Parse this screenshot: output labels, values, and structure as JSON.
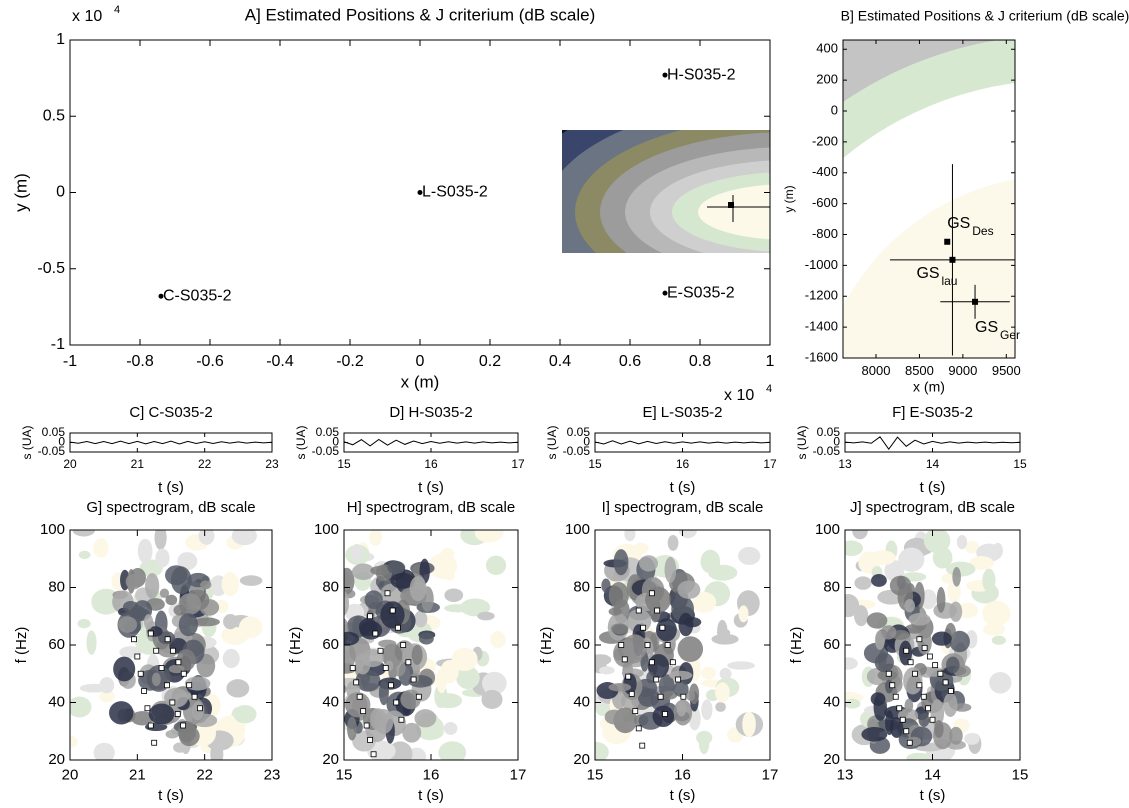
{
  "chart_data": [
    {
      "type": "scatter",
      "title": "A] Estimated Positions & J criterium (dB scale)",
      "x_label": "x (m)",
      "y_label": "y (m)",
      "x_scale_label": "x 10",
      "x_scale_exp": "4",
      "y_scale_label": "x 10",
      "y_scale_exp": "4",
      "xlim": [
        -1,
        1
      ],
      "ylim": [
        -1,
        1
      ],
      "xticks": [
        -1,
        -0.8,
        -0.6,
        -0.4,
        -0.2,
        0,
        0.2,
        0.4,
        0.6,
        0.8,
        1
      ],
      "yticks": [
        -1,
        -0.5,
        0,
        0.5,
        1
      ],
      "labels": [
        "C-S035-2",
        "H-S035-2",
        "L-S035-2",
        "E-S035-2"
      ],
      "x": [
        -0.74,
        0.7,
        0,
        0.7
      ],
      "y": [
        -0.68,
        0.77,
        0,
        -0.66
      ],
      "color": "#000000"
    },
    {
      "type": "errorbar",
      "title": "B] Estimated Positions & J criterium (dB scale)",
      "x_label": "x (m)",
      "y_label": "y (m)",
      "xlim": [
        7620,
        9600
      ],
      "ylim": [
        -1600,
        460
      ],
      "xticks": [
        8000,
        8500,
        9000,
        9500
      ],
      "yticks": [
        -1600,
        -1400,
        -1200,
        -1000,
        -800,
        -600,
        -400,
        -200,
        0,
        200,
        400
      ],
      "label_base": "GS",
      "label_subs": [
        "Des",
        "lau",
        "Ger"
      ],
      "x": [
        8820,
        8880,
        9140
      ],
      "y": [
        -847,
        -964,
        -1236
      ],
      "x_err": [
        null,
        720,
        400
      ],
      "y_err": [
        null,
        620,
        110
      ],
      "color": "#000000"
    },
    {
      "type": "line",
      "title": "C] C-S035-2",
      "x_label": "t (s)",
      "y_label": "s (UA)",
      "xlim": [
        20,
        23
      ],
      "ylim": [
        -0.05,
        0.05
      ],
      "xticks": [
        20,
        21,
        22,
        23
      ],
      "yticks": [
        -0.05,
        0,
        0.05
      ],
      "x": [
        20,
        20.125,
        20.25,
        20.375,
        20.5,
        20.625,
        20.75,
        20.875,
        21,
        21.125,
        21.25,
        21.375,
        21.5,
        21.625,
        21.75,
        21.875,
        22,
        22.125,
        22.25,
        22.375,
        22.5,
        22.625,
        22.75,
        22.875,
        23
      ],
      "values": [
        0.002,
        -0.004,
        0.005,
        -0.006,
        0.005,
        -0.006,
        0.007,
        -0.006,
        0.006,
        -0.007,
        0.005,
        -0.006,
        0.007,
        -0.008,
        0.006,
        -0.005,
        0.004,
        -0.005,
        0.004,
        -0.003,
        0.003,
        -0.003,
        0.002,
        -0.002,
        0.001
      ],
      "color": "#000000"
    },
    {
      "type": "line",
      "title": "D] H-S035-2",
      "x_label": "t (s)",
      "y_label": "s (UA)",
      "xlim": [
        15,
        17
      ],
      "ylim": [
        -0.05,
        0.05
      ],
      "xticks": [
        15,
        16,
        17
      ],
      "yticks": [
        -0.05,
        0,
        0.05
      ],
      "x": [
        15,
        15.1,
        15.2,
        15.3,
        15.4,
        15.5,
        15.6,
        15.7,
        15.8,
        15.9,
        16,
        16.1,
        16.2,
        16.3,
        16.4,
        16.5,
        16.6,
        16.7,
        16.8,
        16.9,
        17
      ],
      "values": [
        0.004,
        -0.012,
        0.015,
        -0.018,
        0.016,
        -0.014,
        0.012,
        -0.01,
        0.008,
        -0.006,
        0.005,
        -0.004,
        0.004,
        -0.003,
        0.003,
        -0.003,
        0.003,
        -0.002,
        0.002,
        -0.002,
        0.001
      ],
      "color": "#000000"
    },
    {
      "type": "line",
      "title": "E] L-S035-2",
      "x_label": "t (s)",
      "y_label": "s (UA)",
      "xlim": [
        15,
        17
      ],
      "ylim": [
        -0.05,
        0.05
      ],
      "xticks": [
        15,
        16,
        17
      ],
      "yticks": [
        -0.05,
        0,
        0.05
      ],
      "x": [
        15,
        15.1,
        15.2,
        15.3,
        15.4,
        15.5,
        15.6,
        15.7,
        15.8,
        15.9,
        16,
        16.1,
        16.2,
        16.3,
        16.4,
        16.5,
        16.6,
        16.7,
        16.8,
        16.9,
        17
      ],
      "values": [
        0.003,
        -0.008,
        0.009,
        -0.008,
        0.007,
        -0.007,
        0.006,
        -0.005,
        0.004,
        -0.004,
        0.003,
        -0.003,
        0.003,
        -0.003,
        0.002,
        -0.003,
        0.002,
        -0.002,
        0.002,
        -0.002,
        0.001
      ],
      "color": "#000000"
    },
    {
      "type": "line",
      "title": "F] E-S035-2",
      "x_label": "t (s)",
      "y_label": "s (UA)",
      "xlim": [
        13,
        15
      ],
      "ylim": [
        -0.05,
        0.05
      ],
      "xticks": [
        13,
        14,
        15
      ],
      "yticks": [
        -0.05,
        0,
        0.05
      ],
      "x": [
        13,
        13.1,
        13.2,
        13.3,
        13.4,
        13.5,
        13.6,
        13.7,
        13.8,
        13.9,
        14,
        14.1,
        14.2,
        14.3,
        14.4,
        14.5,
        14.6,
        14.7,
        14.8,
        14.9,
        15
      ],
      "values": [
        0.002,
        -0.002,
        0.003,
        -0.004,
        0.03,
        -0.035,
        0.028,
        -0.02,
        0.012,
        -0.008,
        0.006,
        -0.004,
        0.003,
        -0.003,
        0.002,
        -0.002,
        0.002,
        -0.002,
        0.001,
        -0.001,
        0.001
      ],
      "color": "#000000"
    },
    {
      "type": "spectrogram",
      "title": "G] spectrogram, dB scale",
      "x_label": "t (s)",
      "y_label": "f (Hz)",
      "xlim": [
        20,
        23
      ],
      "ylim": [
        20,
        100
      ],
      "xticks": [
        20,
        21,
        22,
        23
      ],
      "yticks": [
        20,
        40,
        60,
        80,
        100
      ],
      "x": [
        20.95,
        21.0,
        21.05,
        21.1,
        21.15,
        21.2,
        21.25,
        21.2,
        21.28,
        21.36,
        21.44,
        21.52,
        21.6,
        21.68,
        21.45,
        21.53,
        21.61,
        21.69,
        21.77,
        21.85,
        21.93
      ],
      "values": [
        62,
        56,
        50,
        44,
        38,
        32,
        26,
        64,
        58,
        52,
        46,
        40,
        36,
        32,
        62,
        58,
        54,
        50,
        46,
        42,
        38
      ]
    },
    {
      "type": "spectrogram",
      "title": "H] spectrogram, dB scale",
      "x_label": "t (s)",
      "y_label": "f (Hz)",
      "xlim": [
        15,
        17
      ],
      "ylim": [
        20,
        100
      ],
      "xticks": [
        15,
        16,
        17
      ],
      "yticks": [
        20,
        40,
        60,
        80,
        100
      ],
      "x": [
        15.1,
        15.14,
        15.18,
        15.22,
        15.26,
        15.3,
        15.34,
        15.3,
        15.36,
        15.42,
        15.48,
        15.54,
        15.6,
        15.66,
        15.5,
        15.56,
        15.62,
        15.68,
        15.74,
        15.8,
        15.86
      ],
      "values": [
        52,
        47,
        42,
        37,
        32,
        27,
        22,
        70,
        64,
        58,
        52,
        46,
        40,
        34,
        78,
        72,
        66,
        60,
        54,
        48,
        42
      ]
    },
    {
      "type": "spectrogram",
      "title": "I] spectrogram, dB scale",
      "x_label": "t (s)",
      "y_label": "f (Hz)",
      "xlim": [
        15,
        17
      ],
      "ylim": [
        20,
        100
      ],
      "xticks": [
        15,
        16,
        17
      ],
      "yticks": [
        20,
        40,
        60,
        80,
        100
      ],
      "x": [
        15.3,
        15.34,
        15.38,
        15.42,
        15.46,
        15.5,
        15.54,
        15.5,
        15.55,
        15.6,
        15.65,
        15.7,
        15.75,
        15.8,
        15.65,
        15.71,
        15.77,
        15.83,
        15.89,
        15.95,
        16.01
      ],
      "values": [
        60,
        55,
        49,
        43,
        37,
        31,
        25,
        72,
        66,
        60,
        54,
        48,
        42,
        36,
        78,
        72,
        66,
        60,
        54,
        48,
        42
      ]
    },
    {
      "type": "spectrogram",
      "title": "J] spectrogram, dB scale",
      "x_label": "t (s)",
      "y_label": "f (Hz)",
      "xlim": [
        13,
        15
      ],
      "ylim": [
        20,
        100
      ],
      "xticks": [
        13,
        14,
        15
      ],
      "yticks": [
        20,
        40,
        60,
        80,
        100
      ],
      "x": [
        13.5,
        13.54,
        13.58,
        13.62,
        13.66,
        13.7,
        13.74,
        13.7,
        13.75,
        13.8,
        13.85,
        13.9,
        13.95,
        14.0,
        13.85,
        13.91,
        13.97,
        14.03,
        14.09,
        14.15,
        14.21
      ],
      "values": [
        50,
        46,
        42,
        38,
        34,
        30,
        26,
        58,
        54,
        50,
        46,
        42,
        38,
        34,
        62,
        59,
        56,
        53,
        50,
        47,
        44
      ]
    }
  ]
}
